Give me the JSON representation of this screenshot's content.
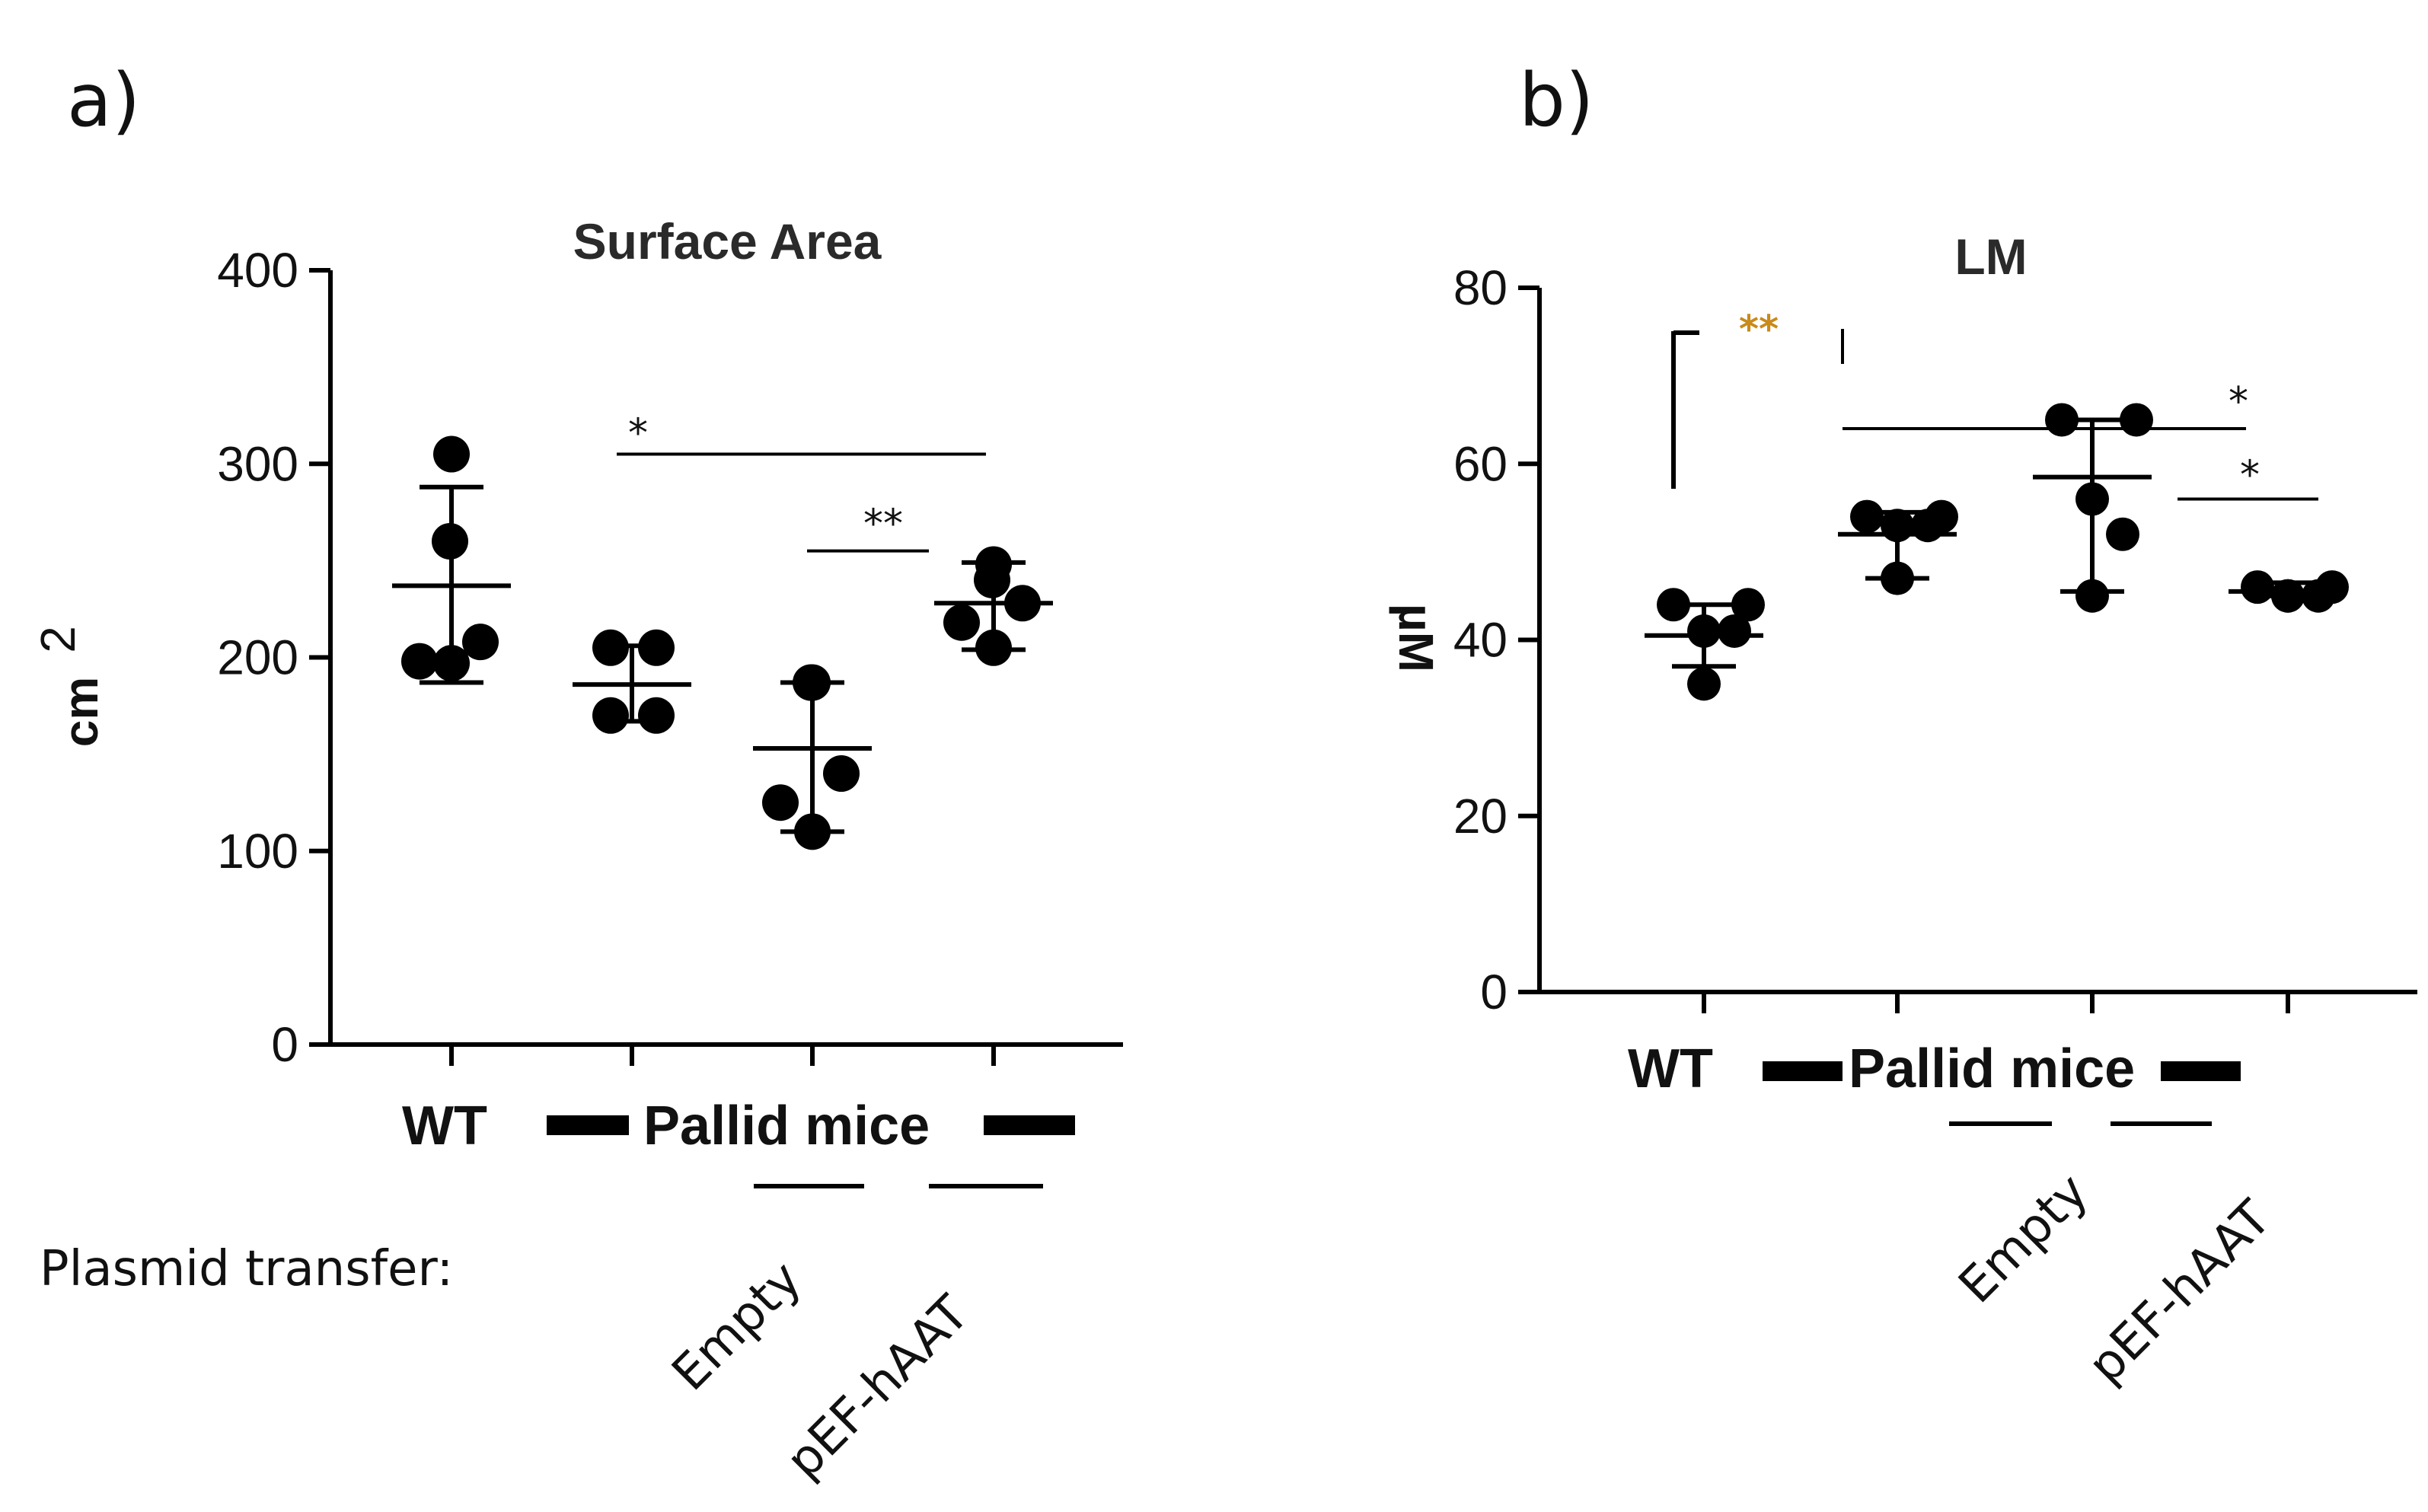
{
  "panels": {
    "a": "a)",
    "b": "b)"
  },
  "x_groups": {
    "wt": "WT",
    "pallid": "Pallid mice",
    "plasmid_label": "Plasmid transfer:",
    "empty": "Empty",
    "hAAT": "pEF-hAAT"
  },
  "chart_data": [
    {
      "type": "scatter",
      "title": "Surface Area",
      "ylabel": "cm",
      "ylabel_sup": "2",
      "ylim": [
        0,
        400
      ],
      "yticks": [
        "0",
        "100",
        "200",
        "300",
        "400"
      ],
      "categories": [
        "WT",
        "Pallid",
        "Pallid + Empty",
        "Pallid + pEF-hAAT"
      ],
      "points": [
        [
          305,
          260,
          208,
          198,
          197
        ],
        [
          205,
          205,
          170,
          170
        ],
        [
          187,
          187,
          140,
          125,
          110
        ],
        [
          248,
          240,
          228,
          218,
          205
        ]
      ],
      "mean": [
        237,
        186,
        153,
        228
      ],
      "sd_low": [
        187,
        167,
        110,
        204
      ],
      "sd_high": [
        288,
        206,
        187,
        249
      ],
      "significance": [
        {
          "label": "*",
          "from": 1,
          "to": 3,
          "y": 305
        },
        {
          "label": "**",
          "from": 2,
          "to": 3,
          "y": 255
        }
      ]
    },
    {
      "type": "scatter",
      "title": "LM",
      "ylabel": "µM",
      "ylim": [
        0,
        80
      ],
      "yticks": [
        "0",
        "20",
        "40",
        "60",
        "80"
      ],
      "categories": [
        "WT",
        "Pallid",
        "Pallid + Empty",
        "Pallid + pEF-hAAT"
      ],
      "points": [
        [
          44,
          44,
          41,
          41,
          35
        ],
        [
          54,
          54,
          53,
          53,
          47
        ],
        [
          65,
          65,
          56,
          52,
          45
        ],
        [
          46,
          46,
          45,
          45,
          45
        ]
      ],
      "mean": [
        40.5,
        52,
        58.5,
        45.5
      ],
      "sd_low": [
        37,
        47,
        45.5,
        45
      ],
      "sd_high": [
        44,
        54.5,
        65,
        46.5
      ],
      "significance": [
        {
          "label": "**",
          "from": 0,
          "to": 1,
          "y": 74.5,
          "color": "#c98a1a"
        },
        {
          "label": "*",
          "from": 1,
          "to": 3,
          "y": 64
        },
        {
          "label": "*",
          "from": 3,
          "to": 3,
          "y": 56
        }
      ]
    }
  ]
}
